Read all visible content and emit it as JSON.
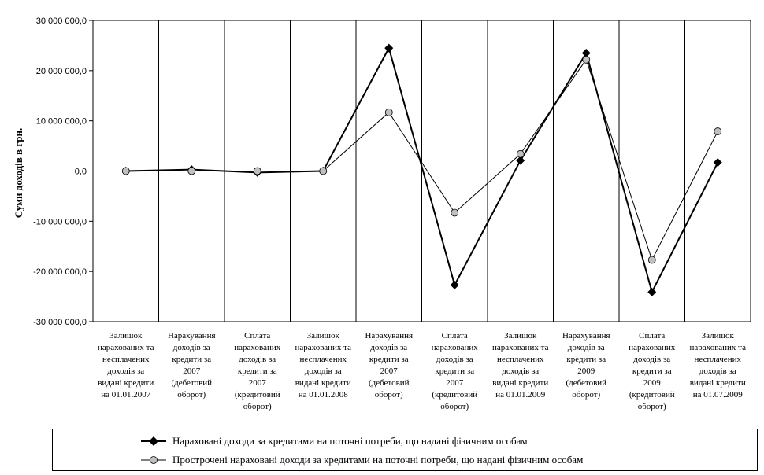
{
  "chart_data": {
    "type": "line",
    "ylabel": "Суми доходів в грн.",
    "ylim": [
      -30000000,
      30000000
    ],
    "ytick_values": [
      30000000,
      20000000,
      10000000,
      0,
      -10000000,
      -20000000,
      -30000000
    ],
    "ytick_labels": [
      "30 000 000,0",
      "20 000 000,0",
      "10 000 000,0",
      "0,0",
      "-10 000 000,0",
      "-20 000 000,0",
      "-30 000 000,0"
    ],
    "grid": "vertical",
    "legend_position": "bottom",
    "categories": [
      [
        "Залишок",
        "нарахованих та",
        "несплачених",
        "доходів за",
        "видані кредити",
        "на 01.01.2007"
      ],
      [
        "Нарахування",
        "доходів за",
        "кредити за",
        "2007",
        "(дебетовий",
        "оборот)"
      ],
      [
        "Сплата",
        "нарахованих",
        "доходів за",
        "кредити за",
        "2007",
        "(кредитовий",
        "оборот)"
      ],
      [
        "Залишок",
        "нарахованих та",
        "несплачених",
        "доходів за",
        "видані кредити",
        "на 01.01.2008"
      ],
      [
        "Нарахування",
        "доходів за",
        "кредити за",
        "2007",
        "(дебетовий",
        "оборот)"
      ],
      [
        "Сплата",
        "нарахованих",
        "доходів за",
        "кредити за",
        "2007",
        "(кредитовий",
        "оборот)"
      ],
      [
        "Залишок",
        "нарахованих та",
        "несплачених",
        "доходів за",
        "видані кредити",
        "на 01.01.2009"
      ],
      [
        "Нарахування",
        "доходів за",
        "кредити за",
        "2009",
        "(дебетовий",
        "оборот)"
      ],
      [
        "Сплата",
        "нарахованих",
        "доходів за",
        "кредити за",
        "2009",
        "(кредитовий",
        "оборот)"
      ],
      [
        "Залишок",
        "нарахованих та",
        "несплачених",
        "доходів за",
        "видані кредити",
        "на 01.07.2009"
      ]
    ],
    "series": [
      {
        "name": "Нараховані доходи за кредитами на поточні потреби, що надані фізичним особам",
        "marker": "diamond",
        "color": "#000000",
        "values": [
          0,
          300000,
          -300000,
          0,
          24500000,
          -22700000,
          2100000,
          23500000,
          -24100000,
          1700000
        ]
      },
      {
        "name": "Прострочені нараховані доходи за кредитами на поточні потреби, що надані фізичним особам",
        "marker": "circle",
        "color": "#bfbfbf",
        "values": [
          0,
          0,
          0,
          0,
          11700000,
          -8300000,
          3400000,
          22200000,
          -17700000,
          7900000
        ]
      }
    ]
  }
}
